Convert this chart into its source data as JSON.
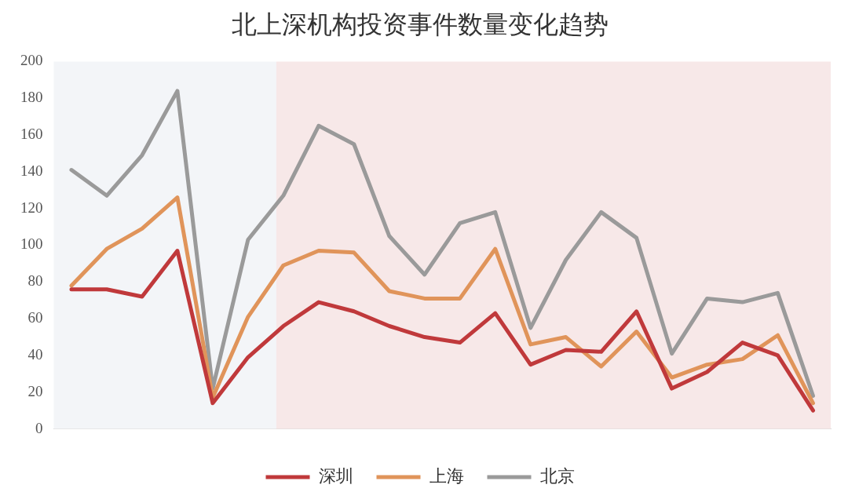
{
  "chart_data": {
    "type": "line",
    "title": "北上深机构投资事件数量变化趋势",
    "categories": [
      null,
      null,
      null,
      null,
      null,
      null,
      null,
      null,
      null,
      null,
      null,
      null,
      null,
      null,
      null,
      null,
      null,
      null,
      null,
      null,
      null,
      null
    ],
    "series": [
      {
        "name": "深圳",
        "color": "#c0393b",
        "values": [
          76,
          76,
          72,
          97,
          14,
          39,
          56,
          69,
          64,
          56,
          50,
          47,
          63,
          35,
          43,
          42,
          64,
          22,
          31,
          47,
          40,
          10
        ]
      },
      {
        "name": "上海",
        "color": "#e0945a",
        "values": [
          78,
          98,
          109,
          126,
          17,
          61,
          89,
          97,
          96,
          75,
          71,
          71,
          98,
          46,
          50,
          34,
          53,
          28,
          35,
          38,
          51,
          14
        ]
      },
      {
        "name": "北京",
        "color": "#9a9a9a",
        "values": [
          141,
          127,
          149,
          184,
          22,
          103,
          127,
          165,
          155,
          105,
          84,
          112,
          118,
          55,
          92,
          118,
          104,
          41,
          71,
          69,
          74,
          18
        ]
      }
    ],
    "ylim": [
      0,
      200
    ],
    "yticks": [
      0,
      20,
      40,
      60,
      80,
      100,
      120,
      140,
      160,
      180,
      200
    ],
    "grid": false,
    "legend": "bottom",
    "line_style": "solid",
    "marker": "none"
  }
}
